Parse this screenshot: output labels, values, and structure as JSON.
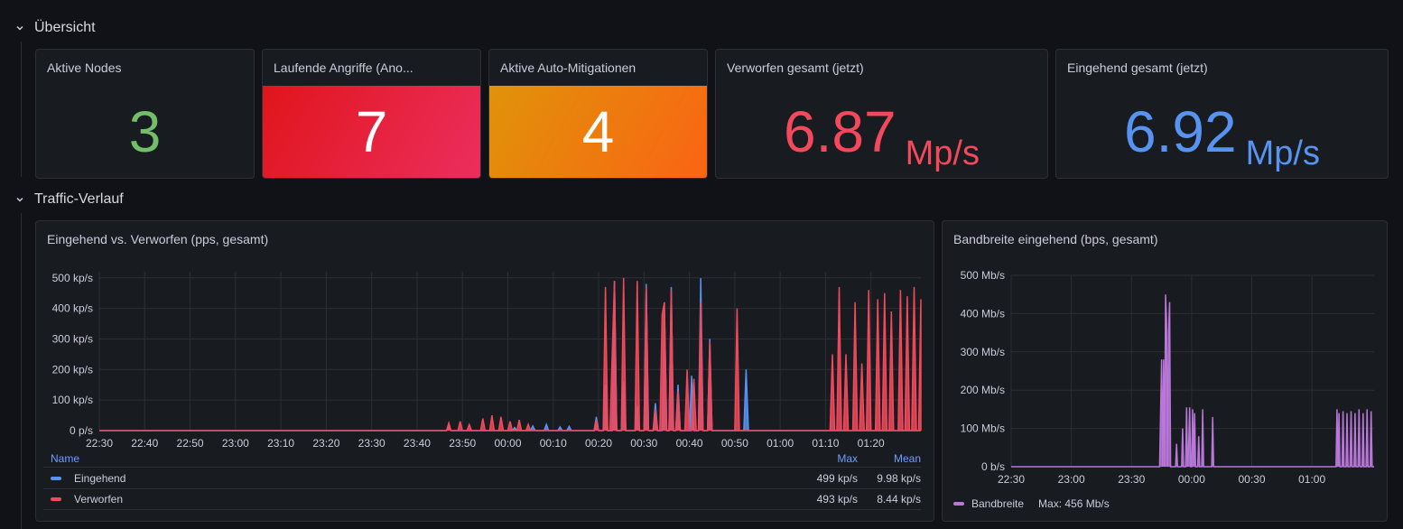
{
  "rows": {
    "overview": {
      "title": "Übersicht"
    },
    "traffic": {
      "title": "Traffic-Verlauf"
    }
  },
  "stats": {
    "active_nodes": {
      "title": "Aktive Nodes",
      "value": "3",
      "color": "#73bf69"
    },
    "attacks": {
      "title": "Laufende Angriffe (Ano...",
      "value": "7",
      "bg_from": "#e02f1b",
      "bg_to": "#f03a5e"
    },
    "mitigations": {
      "title": "Aktive Auto-Mitigationen",
      "value": "4",
      "bg_from": "#e0920b",
      "bg_to": "#fa6400"
    },
    "dropped": {
      "title": "Verworfen gesamt (jetzt)",
      "value": "6.87",
      "unit": "Mp/s",
      "color": "#f2495c"
    },
    "incoming": {
      "title": "Eingehend gesamt (jetzt)",
      "value": "6.92",
      "unit": "Mp/s",
      "color": "#5794f2"
    }
  },
  "pps_panel": {
    "title": "Eingehend vs. Verworfen (pps, gesamt)",
    "legend": {
      "header": {
        "name": "Name",
        "max": "Max",
        "mean": "Mean"
      },
      "rows": [
        {
          "name": "Eingehend",
          "max": "499 kp/s",
          "mean": "9.98 kp/s",
          "color": "#5794f2"
        },
        {
          "name": "Verworfen",
          "max": "493 kp/s",
          "mean": "8.44 kp/s",
          "color": "#f2495c"
        }
      ]
    }
  },
  "bw_panel": {
    "title": "Bandbreite eingehend (bps, gesamt)",
    "legend": {
      "name": "Bandbreite",
      "max": "Max: 456 Mb/s",
      "color": "#b877d9"
    }
  },
  "chart_data": [
    {
      "type": "area",
      "title": "Eingehend vs. Verworfen (pps, gesamt)",
      "x_ticks": [
        "22:30",
        "22:40",
        "22:50",
        "23:00",
        "23:10",
        "23:20",
        "23:30",
        "23:40",
        "23:50",
        "00:00",
        "00:10",
        "00:20",
        "00:30",
        "00:40",
        "00:50",
        "01:00",
        "01:10",
        "01:20"
      ],
      "y_ticks": [
        "0 p/s",
        "100 kp/s",
        "200 kp/s",
        "300 kp/s",
        "400 kp/s",
        "500 kp/s"
      ],
      "ylim": [
        0,
        520
      ],
      "x_unit": "minutes since 22:30",
      "xlim": [
        0,
        181
      ],
      "grid": true,
      "series": [
        {
          "name": "Eingehend",
          "color": "#5794f2",
          "points": [
            [
              76.5,
              0
            ],
            [
              77,
              15
            ],
            [
              77.5,
              0
            ],
            [
              91,
              0
            ],
            [
              91.5,
              10
            ],
            [
              92,
              0
            ],
            [
              95,
              0
            ],
            [
              95.5,
              15
            ],
            [
              96,
              0
            ],
            [
              98,
              0
            ],
            [
              98.5,
              20
            ],
            [
              99,
              0
            ],
            [
              101,
              0
            ],
            [
              101.5,
              12
            ],
            [
              102,
              0
            ],
            [
              103,
              0
            ],
            [
              103.5,
              14
            ],
            [
              104,
              0
            ],
            [
              109,
              0
            ],
            [
              109.5,
              45
            ],
            [
              110,
              0
            ],
            [
              111,
              0
            ],
            [
              111.5,
              150
            ],
            [
              112,
              0
            ],
            [
              113,
              0
            ],
            [
              113.5,
              490
            ],
            [
              114,
              0
            ],
            [
              115,
              0
            ],
            [
              115.5,
              160
            ],
            [
              116,
              0
            ],
            [
              118,
              0
            ],
            [
              118.5,
              80
            ],
            [
              119,
              0
            ],
            [
              120,
              0
            ],
            [
              120.5,
              480
            ],
            [
              121,
              0
            ],
            [
              122,
              0
            ],
            [
              122.5,
              90
            ],
            [
              123,
              0
            ],
            [
              124,
              0
            ],
            [
              124.5,
              400
            ],
            [
              125,
              0
            ],
            [
              125.5,
              0
            ],
            [
              126,
              470
            ],
            [
              126.5,
              0
            ],
            [
              127,
              0
            ],
            [
              127.5,
              150
            ],
            [
              128,
              0
            ],
            [
              130,
              0
            ],
            [
              130.5,
              180
            ],
            [
              131,
              0
            ],
            [
              132,
              0
            ],
            [
              132.5,
              499
            ],
            [
              133,
              0
            ],
            [
              134,
              0
            ],
            [
              134.5,
              300
            ],
            [
              135,
              0
            ],
            [
              142,
              0
            ],
            [
              142.5,
              200
            ],
            [
              143,
              0
            ]
          ]
        },
        {
          "name": "Verworfen",
          "color": "#f2495c",
          "points": [
            [
              76.5,
              0
            ],
            [
              77,
              25
            ],
            [
              77.5,
              0
            ],
            [
              79,
              0
            ],
            [
              79.5,
              30
            ],
            [
              80,
              0
            ],
            [
              81,
              0
            ],
            [
              81.5,
              20
            ],
            [
              82,
              0
            ],
            [
              84,
              0
            ],
            [
              84.5,
              40
            ],
            [
              85,
              0
            ],
            [
              86,
              0
            ],
            [
              86.5,
              50
            ],
            [
              87,
              0
            ],
            [
              88,
              0
            ],
            [
              88.5,
              45
            ],
            [
              89,
              0
            ],
            [
              90,
              0
            ],
            [
              90.5,
              30
            ],
            [
              91,
              0
            ],
            [
              92,
              0
            ],
            [
              92.5,
              35
            ],
            [
              93,
              0
            ],
            [
              94,
              0
            ],
            [
              94.5,
              20
            ],
            [
              95,
              0
            ],
            [
              109,
              0
            ],
            [
              109.5,
              35
            ],
            [
              110,
              0
            ],
            [
              111,
              0
            ],
            [
              111.5,
              470
            ],
            [
              112,
              0
            ],
            [
              112.5,
              0
            ],
            [
              113,
              250
            ],
            [
              113.5,
              490
            ],
            [
              114,
              0
            ],
            [
              115,
              0
            ],
            [
              115.5,
              500
            ],
            [
              116,
              0
            ],
            [
              118,
              0
            ],
            [
              118.5,
              490
            ],
            [
              119,
              0
            ],
            [
              120,
              0
            ],
            [
              120.5,
              470
            ],
            [
              121,
              0
            ],
            [
              122,
              0
            ],
            [
              122.5,
              70
            ],
            [
              123,
              0
            ],
            [
              123.5,
              0
            ],
            [
              124,
              380
            ],
            [
              124.5,
              420
            ],
            [
              125,
              0
            ],
            [
              125.5,
              0
            ],
            [
              126,
              460
            ],
            [
              126.5,
              0
            ],
            [
              127,
              0
            ],
            [
              127.5,
              130
            ],
            [
              128,
              0
            ],
            [
              129,
              0
            ],
            [
              129.5,
              200
            ],
            [
              130,
              0
            ],
            [
              130.5,
              0
            ],
            [
              131,
              170
            ],
            [
              131.5,
              0
            ],
            [
              132,
              0
            ],
            [
              132.5,
              420
            ],
            [
              133,
              0
            ],
            [
              134,
              0
            ],
            [
              134.5,
              290
            ],
            [
              135,
              0
            ],
            [
              140,
              0
            ],
            [
              140.5,
              400
            ],
            [
              141,
              0
            ],
            [
              161,
              0
            ],
            [
              161.5,
              250
            ],
            [
              162,
              0
            ],
            [
              162.5,
              0
            ],
            [
              163,
              470
            ],
            [
              163.5,
              0
            ],
            [
              164,
              0
            ],
            [
              164.5,
              250
            ],
            [
              165,
              0
            ],
            [
              166,
              0
            ],
            [
              166.5,
              420
            ],
            [
              167,
              0
            ],
            [
              167.5,
              0
            ],
            [
              168,
              220
            ],
            [
              168.5,
              0
            ],
            [
              169,
              0
            ],
            [
              169.5,
              460
            ],
            [
              170,
              0
            ],
            [
              171,
              0
            ],
            [
              171.5,
              430
            ],
            [
              172,
              0
            ],
            [
              172.5,
              0
            ],
            [
              173,
              450
            ],
            [
              173.5,
              0
            ],
            [
              174,
              0
            ],
            [
              174.5,
              390
            ],
            [
              175,
              0
            ],
            [
              176,
              0
            ],
            [
              176.5,
              460
            ],
            [
              177,
              0
            ],
            [
              177.5,
              0
            ],
            [
              178,
              440
            ],
            [
              178.5,
              0
            ],
            [
              179,
              0
            ],
            [
              179.5,
              470
            ],
            [
              180,
              0
            ],
            [
              180.5,
              0
            ],
            [
              181,
              430
            ]
          ]
        }
      ]
    },
    {
      "type": "area",
      "title": "Bandbreite eingehend (bps, gesamt)",
      "x_ticks": [
        "22:30",
        "23:00",
        "23:30",
        "00:00",
        "00:30",
        "01:00"
      ],
      "y_ticks": [
        "0 b/s",
        "100 Mb/s",
        "200 Mb/s",
        "300 Mb/s",
        "400 Mb/s",
        "500 Mb/s"
      ],
      "ylim": [
        0,
        500
      ],
      "x_unit": "minutes since 22:30",
      "xlim": [
        0,
        181
      ],
      "grid": true,
      "series": [
        {
          "name": "Bandbreite",
          "color": "#b877d9",
          "points": [
            [
              74,
              0
            ],
            [
              74.5,
              140
            ],
            [
              75,
              280
            ],
            [
              75.5,
              0
            ],
            [
              76,
              280
            ],
            [
              76.5,
              0
            ],
            [
              77,
              450
            ],
            [
              77.5,
              380
            ],
            [
              78,
              0
            ],
            [
              78.5,
              350
            ],
            [
              79,
              430
            ],
            [
              79.5,
              0
            ],
            [
              82,
              0
            ],
            [
              82.5,
              60
            ],
            [
              83,
              0
            ],
            [
              85,
              0
            ],
            [
              85.5,
              100
            ],
            [
              86,
              0
            ],
            [
              87,
              0
            ],
            [
              87.5,
              155
            ],
            [
              88,
              0
            ],
            [
              88.5,
              50
            ],
            [
              89,
              155
            ],
            [
              89.5,
              0
            ],
            [
              90,
              0
            ],
            [
              90.5,
              150
            ],
            [
              91,
              0
            ],
            [
              91.5,
              140
            ],
            [
              92,
              0
            ],
            [
              93,
              0
            ],
            [
              93.5,
              80
            ],
            [
              94,
              0
            ],
            [
              95,
              0
            ],
            [
              95.5,
              150
            ],
            [
              96,
              0
            ],
            [
              100,
              0
            ],
            [
              100.5,
              130
            ],
            [
              101,
              0
            ],
            [
              162,
              0
            ],
            [
              162.5,
              150
            ],
            [
              163,
              0
            ],
            [
              163.5,
              140
            ],
            [
              164,
              0
            ],
            [
              165,
              0
            ],
            [
              165.5,
              145
            ],
            [
              166,
              0
            ],
            [
              167,
              0
            ],
            [
              167.5,
              140
            ],
            [
              168,
              0
            ],
            [
              169,
              0
            ],
            [
              169.5,
              145
            ],
            [
              170,
              0
            ],
            [
              171,
              0
            ],
            [
              171.5,
              140
            ],
            [
              172,
              0
            ],
            [
              173,
              0
            ],
            [
              173.5,
              150
            ],
            [
              174,
              0
            ],
            [
              175,
              0
            ],
            [
              175.5,
              140
            ],
            [
              176,
              0
            ],
            [
              177,
              0
            ],
            [
              177.5,
              150
            ],
            [
              178,
              0
            ],
            [
              179,
              0
            ],
            [
              179.5,
              145
            ],
            [
              180,
              0
            ]
          ]
        }
      ]
    }
  ]
}
